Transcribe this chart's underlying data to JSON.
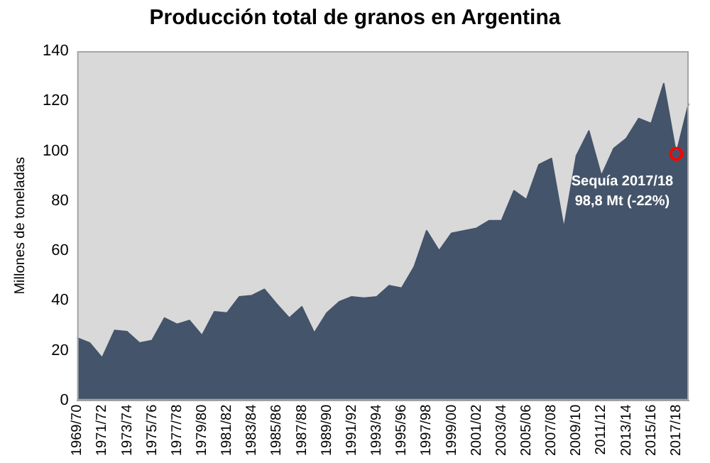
{
  "chart_data": {
    "type": "area",
    "title": "Producción total de granos en Argentina",
    "ylabel": "Millones de toneladas",
    "categories": [
      "1969/70",
      null,
      "1971/72",
      null,
      "1973/74",
      null,
      "1975/76",
      null,
      "1977/78",
      null,
      "1979/80",
      null,
      "1981/82",
      null,
      "1983/84",
      null,
      "1985/86",
      null,
      "1987/88",
      null,
      "1989/90",
      null,
      "1991/92",
      null,
      "1993/94",
      null,
      "1995/96",
      null,
      "1997/98",
      null,
      "1999/00",
      null,
      "2001/02",
      null,
      "2003/04",
      null,
      "2005/06",
      null,
      "2007/08",
      null,
      "2009/10",
      null,
      "2011/12",
      null,
      "2013/14",
      null,
      "2015/16",
      null,
      "2017/18",
      null
    ],
    "series": [
      {
        "color": "#44546a",
        "values": [
          25,
          23,
          17,
          28,
          27.5,
          23,
          24,
          33,
          30.5,
          32,
          26,
          35.5,
          35,
          41.5,
          42,
          44.5,
          38.5,
          33,
          37.5,
          27,
          35,
          39.5,
          41.5,
          41,
          41.5,
          46,
          45,
          53.5,
          68,
          60,
          67,
          68,
          69,
          72,
          72,
          84,
          80.5,
          94.5,
          97,
          69,
          98,
          108,
          90,
          101,
          105,
          113,
          111,
          127,
          98.8,
          119
        ]
      }
    ],
    "ylim": [
      0,
      140
    ],
    "yticks": [
      0,
      20,
      40,
      60,
      80,
      100,
      120,
      140
    ],
    "grid": false,
    "legend": false,
    "annotations": [
      {
        "text": "Sequía 2017/18\n98,8 Mt (-22%)",
        "x": "2017/18",
        "y": 98.8
      }
    ]
  }
}
